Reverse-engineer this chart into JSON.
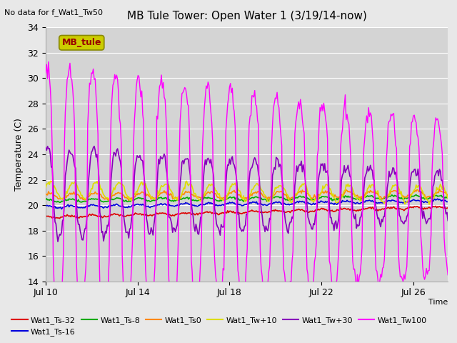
{
  "title": "MB Tule Tower: Open Water 1 (3/19/14-now)",
  "top_left_text": "No data for f_Wat1_Tw50",
  "xlabel": "Time",
  "ylabel": "Temperature (C)",
  "ylim": [
    14,
    34
  ],
  "yticks": [
    14,
    16,
    18,
    20,
    22,
    24,
    26,
    28,
    30,
    32,
    34
  ],
  "xtick_labels": [
    "Jul 10",
    "Jul 14",
    "Jul 18",
    "Jul 22",
    "Jul 26"
  ],
  "xtick_positions": [
    0,
    4,
    8,
    12,
    16
  ],
  "xlim": [
    0,
    17.5
  ],
  "bg_color": "#e8e8e8",
  "plot_bg_color": "#d4d4d4",
  "grid_color": "#ffffff",
  "series_colors": {
    "Wat1_Ts-32": "#dd0000",
    "Wat1_Ts-16": "#0000dd",
    "Wat1_Ts-8": "#00aa00",
    "Wat1_Ts0": "#ff8800",
    "Wat1_Tw+10": "#dddd00",
    "Wat1_Tw+30": "#8800bb",
    "Wat1_Tw100": "#ff00ff"
  },
  "legend_label": "MB_tule",
  "legend_box_facecolor": "#cccc00",
  "legend_box_edgecolor": "#888800",
  "legend_text_color": "#990000"
}
